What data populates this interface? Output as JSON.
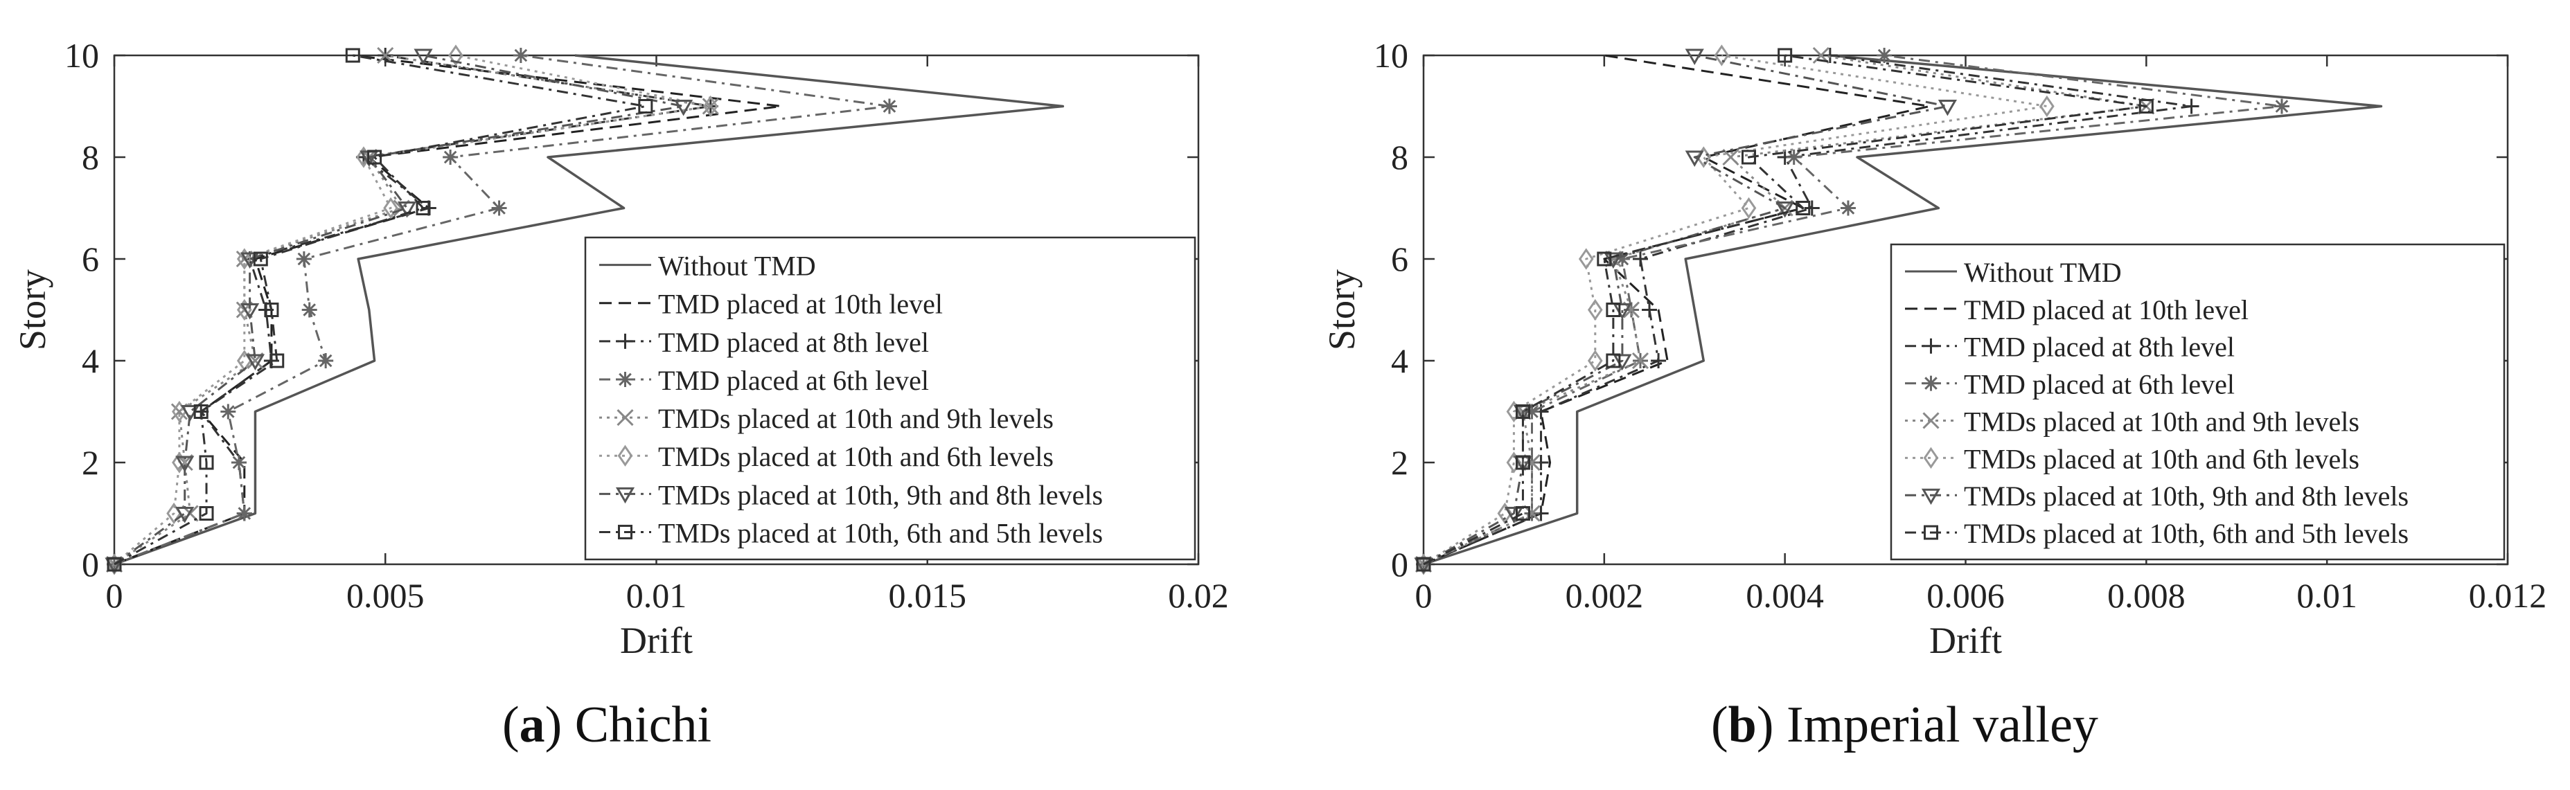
{
  "captions": [
    {
      "letter": "a",
      "text": ") Chichi"
    },
    {
      "letter": "b",
      "text": ") Imperial valley"
    }
  ],
  "chart_data": [
    {
      "type": "line",
      "xlabel": "Drift",
      "ylabel": "Story",
      "xlim": [
        0,
        0.02
      ],
      "ylim": [
        0,
        10
      ],
      "xticks": [
        0,
        0.005,
        0.01,
        0.015,
        0.02
      ],
      "xtick_labels": [
        "0",
        "0.005",
        "0.01",
        "0.015",
        "0.02"
      ],
      "yticks": [
        0,
        2,
        4,
        6,
        8,
        10
      ],
      "ytick_labels": [
        "0",
        "2",
        "4",
        "6",
        "8",
        "10"
      ],
      "grid": false,
      "legend_position": "bottom-right",
      "x": [
        0,
        1,
        2,
        3,
        4,
        5,
        6,
        7,
        8,
        9,
        10
      ],
      "series": [
        {
          "name": "Without TMD",
          "style": "solid",
          "marker": "none",
          "color": "#555555",
          "values": [
            0,
            0.0026,
            0.0026,
            0.0026,
            0.0048,
            0.0047,
            0.0045,
            0.0094,
            0.008,
            0.0175,
            0.0085
          ]
        },
        {
          "name": "TMD placed at 10th level",
          "style": "dashed",
          "marker": "none",
          "color": "#222222",
          "values": [
            0,
            0.0024,
            0.0024,
            0.0016,
            0.0029,
            0.0029,
            0.0026,
            0.0058,
            0.0047,
            0.0123,
            0.0044
          ]
        },
        {
          "name": "TMD placed at 8th level",
          "style": "dashdot",
          "marker": "plus",
          "color": "#333333",
          "values": [
            0,
            0.0024,
            0.0023,
            0.0016,
            0.0029,
            0.0028,
            0.0025,
            0.0058,
            0.0046,
            0.011,
            0.005
          ]
        },
        {
          "name": "TMD placed at 6th level",
          "style": "dashdot",
          "marker": "star",
          "color": "#666666",
          "values": [
            0,
            0.0024,
            0.0023,
            0.0021,
            0.0039,
            0.0036,
            0.0035,
            0.0071,
            0.0062,
            0.0143,
            0.0075
          ]
        },
        {
          "name": "TMDs placed at 10th and 9th levels",
          "style": "dotted",
          "marker": "x",
          "color": "#888888",
          "values": [
            0,
            0.0014,
            0.0013,
            0.0012,
            0.0026,
            0.0024,
            0.0024,
            0.0053,
            0.0047,
            0.011,
            0.005
          ]
        },
        {
          "name": "TMDs placed at 10th and 6th levels",
          "style": "dotted",
          "marker": "diamond",
          "color": "#999999",
          "values": [
            0,
            0.0011,
            0.0012,
            0.0012,
            0.0024,
            0.0024,
            0.0024,
            0.0051,
            0.0046,
            0.011,
            0.0063
          ]
        },
        {
          "name": "TMDs placed at 10th, 9th and 8th levels",
          "style": "dashdot",
          "marker": "triangle-down",
          "color": "#555555",
          "values": [
            0,
            0.0013,
            0.0013,
            0.0014,
            0.0026,
            0.0025,
            0.0025,
            0.0054,
            0.0047,
            0.0105,
            0.0057
          ]
        },
        {
          "name": "TMDs placed at 10th, 6th and 5th levels",
          "style": "dashdot",
          "marker": "square",
          "color": "#333333",
          "values": [
            0,
            0.0017,
            0.0017,
            0.0016,
            0.003,
            0.0029,
            0.0027,
            0.0057,
            0.0048,
            0.0098,
            0.0044
          ]
        }
      ]
    },
    {
      "type": "line",
      "xlabel": "Drift",
      "ylabel": "Story",
      "xlim": [
        0,
        0.012
      ],
      "ylim": [
        0,
        10
      ],
      "xticks": [
        0,
        0.002,
        0.004,
        0.006,
        0.008,
        0.01,
        0.012
      ],
      "xtick_labels": [
        "0",
        "0.002",
        "0.004",
        "0.006",
        "0.008",
        "0.01",
        "0.012"
      ],
      "yticks": [
        0,
        2,
        4,
        6,
        8,
        10
      ],
      "ytick_labels": [
        "0",
        "2",
        "4",
        "6",
        "8",
        "10"
      ],
      "grid": false,
      "legend_position": "bottom-right",
      "x": [
        0,
        1,
        2,
        3,
        4,
        5,
        6,
        7,
        8,
        9,
        10
      ],
      "series": [
        {
          "name": "Without TMD",
          "style": "solid",
          "marker": "none",
          "color": "#555555",
          "values": [
            0,
            0.0017,
            0.0017,
            0.0017,
            0.0031,
            0.003,
            0.0029,
            0.0057,
            0.0048,
            0.0106,
            0.0045
          ]
        },
        {
          "name": "TMD placed at 10th level",
          "style": "dashed",
          "marker": "none",
          "color": "#222222",
          "values": [
            0,
            0.0013,
            0.0014,
            0.0013,
            0.0027,
            0.0026,
            0.002,
            0.0042,
            0.0031,
            0.0056,
            0.002
          ]
        },
        {
          "name": "TMD placed at 8th level",
          "style": "dashdot",
          "marker": "plus",
          "color": "#333333",
          "values": [
            0,
            0.0013,
            0.0013,
            0.0013,
            0.0026,
            0.0025,
            0.0024,
            0.0043,
            0.004,
            0.0085,
            0.0045
          ]
        },
        {
          "name": "TMD placed at 6th level",
          "style": "dashdot",
          "marker": "star",
          "color": "#666666",
          "values": [
            0,
            0.0012,
            0.0012,
            0.0012,
            0.0024,
            0.0023,
            0.0022,
            0.0047,
            0.0041,
            0.0095,
            0.0051
          ]
        },
        {
          "name": "TMDs placed at 10th and 9th levels",
          "style": "dotted",
          "marker": "x",
          "color": "#888888",
          "values": [
            0,
            0.0012,
            0.0012,
            0.0011,
            0.0024,
            0.0023,
            0.0021,
            0.004,
            0.0034,
            0.008,
            0.0044
          ]
        },
        {
          "name": "TMDs placed at 10th and 6th levels",
          "style": "dotted",
          "marker": "diamond",
          "color": "#999999",
          "values": [
            0,
            0.0009,
            0.001,
            0.001,
            0.0019,
            0.0019,
            0.0018,
            0.0036,
            0.0031,
            0.0069,
            0.0033
          ]
        },
        {
          "name": "TMDs placed at 10th, 9th and 8th levels",
          "style": "dashdot",
          "marker": "triangle-down",
          "color": "#555555",
          "values": [
            0,
            0.001,
            0.0011,
            0.0011,
            0.0022,
            0.0022,
            0.0021,
            0.004,
            0.003,
            0.0058,
            0.003
          ]
        },
        {
          "name": "TMDs placed at 10th, 6th and 5th levels",
          "style": "dashdot",
          "marker": "square",
          "color": "#333333",
          "values": [
            0,
            0.0011,
            0.0011,
            0.0011,
            0.0021,
            0.0021,
            0.002,
            0.0042,
            0.0036,
            0.008,
            0.004
          ]
        }
      ]
    }
  ]
}
